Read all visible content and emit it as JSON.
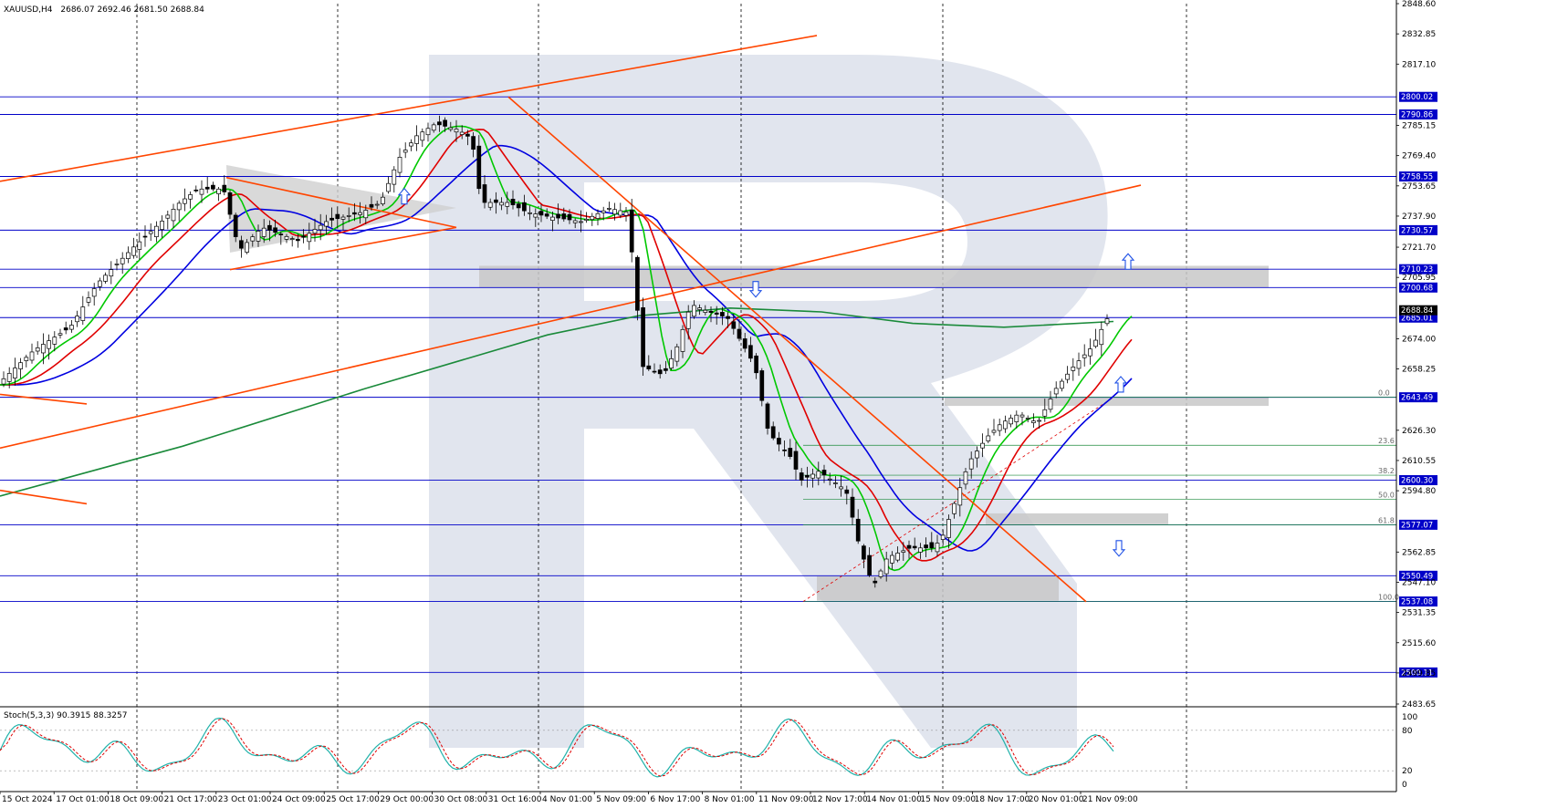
{
  "chart_data": {
    "type": "candlestick",
    "symbol_info": "XAUUSD,H4",
    "ohlc_text": "2686.07 2692.46 2681.50 2688.84",
    "price_axis": [
      "2848.60",
      "2832.85",
      "2817.10",
      "2800.02",
      "2790.86",
      "2785.15",
      "2769.40",
      "2758.55",
      "2753.65",
      "2737.90",
      "2730.57",
      "2721.70",
      "2710.23",
      "2705.95",
      "2700.68",
      "2688.84",
      "2685.01",
      "2674.00",
      "2658.25",
      "2643.49",
      "2626.30",
      "2610.55",
      "2600.30",
      "2594.80",
      "2577.07",
      "2562.85",
      "2550.49",
      "2547.10",
      "2537.08",
      "2531.35",
      "2515.60",
      "2499.85",
      "2500.11",
      "2483.65"
    ],
    "ylim": [
      2483.65,
      2848.6
    ],
    "time_axis": [
      "15 Oct 2024",
      "17 Oct 01:00",
      "18 Oct 09:00",
      "21 Oct 17:00",
      "23 Oct 01:00",
      "24 Oct 09:00",
      "25 Oct 17:00",
      "29 Oct 00:00",
      "30 Oct 08:00",
      "31 Oct 16:00",
      "4 Nov 01:00",
      "5 Nov 09:00",
      "6 Nov 17:00",
      "8 Nov 01:00",
      "11 Nov 09:00",
      "12 Nov 17:00",
      "14 Nov 01:00",
      "15 Nov 09:00",
      "18 Nov 17:00",
      "20 Nov 01:00",
      "21 Nov 09:00"
    ],
    "horizontal_levels": [
      {
        "label": "2800.02",
        "value": 2800.02
      },
      {
        "label": "2790.86",
        "value": 2790.86
      },
      {
        "label": "2758.55",
        "value": 2758.55
      },
      {
        "label": "2730.57",
        "value": 2730.57
      },
      {
        "label": "2710.23",
        "value": 2710.23
      },
      {
        "label": "2700.68",
        "value": 2700.68
      },
      {
        "label": "2685.01",
        "value": 2685.01
      },
      {
        "label": "2643.49",
        "value": 2643.49
      },
      {
        "label": "2600.30",
        "value": 2600.3
      },
      {
        "label": "2577.07",
        "value": 2577.07
      },
      {
        "label": "2550.49",
        "value": 2550.49
      },
      {
        "label": "2537.08",
        "value": 2537.08
      },
      {
        "label": "2500.11",
        "value": 2500.11
      }
    ],
    "current_price": {
      "label": "2688.84",
      "value": 2688.84
    },
    "fib_levels": [
      {
        "label": "0.0",
        "value": 2643.49
      },
      {
        "label": "23.6",
        "value": 2618.5
      },
      {
        "label": "38.2",
        "value": 2602.9
      },
      {
        "label": "50.0",
        "value": 2590.3
      },
      {
        "label": "61.8",
        "value": 2577.07
      },
      {
        "label": "100.0",
        "value": 2537.08
      }
    ],
    "stochastic": {
      "label": "Stoch(5,3,3) 90.3915 88.3257",
      "axis": [
        "100",
        "80",
        "20",
        "0"
      ],
      "ylim": [
        0,
        100
      ]
    },
    "colors": {
      "ma_fast": "#00c800",
      "ma_mid": "#e00000",
      "ma_slow": "#0000e0",
      "ma_long": "#1a8a3a",
      "trend_line": "#ff4500",
      "level_line": "#0000c8",
      "candle": "#000000",
      "stoch_main": "#20b2aa",
      "stoch_signal": "#e00000",
      "zone": "#c8c8c8",
      "arrow": "#1e50e6"
    }
  }
}
